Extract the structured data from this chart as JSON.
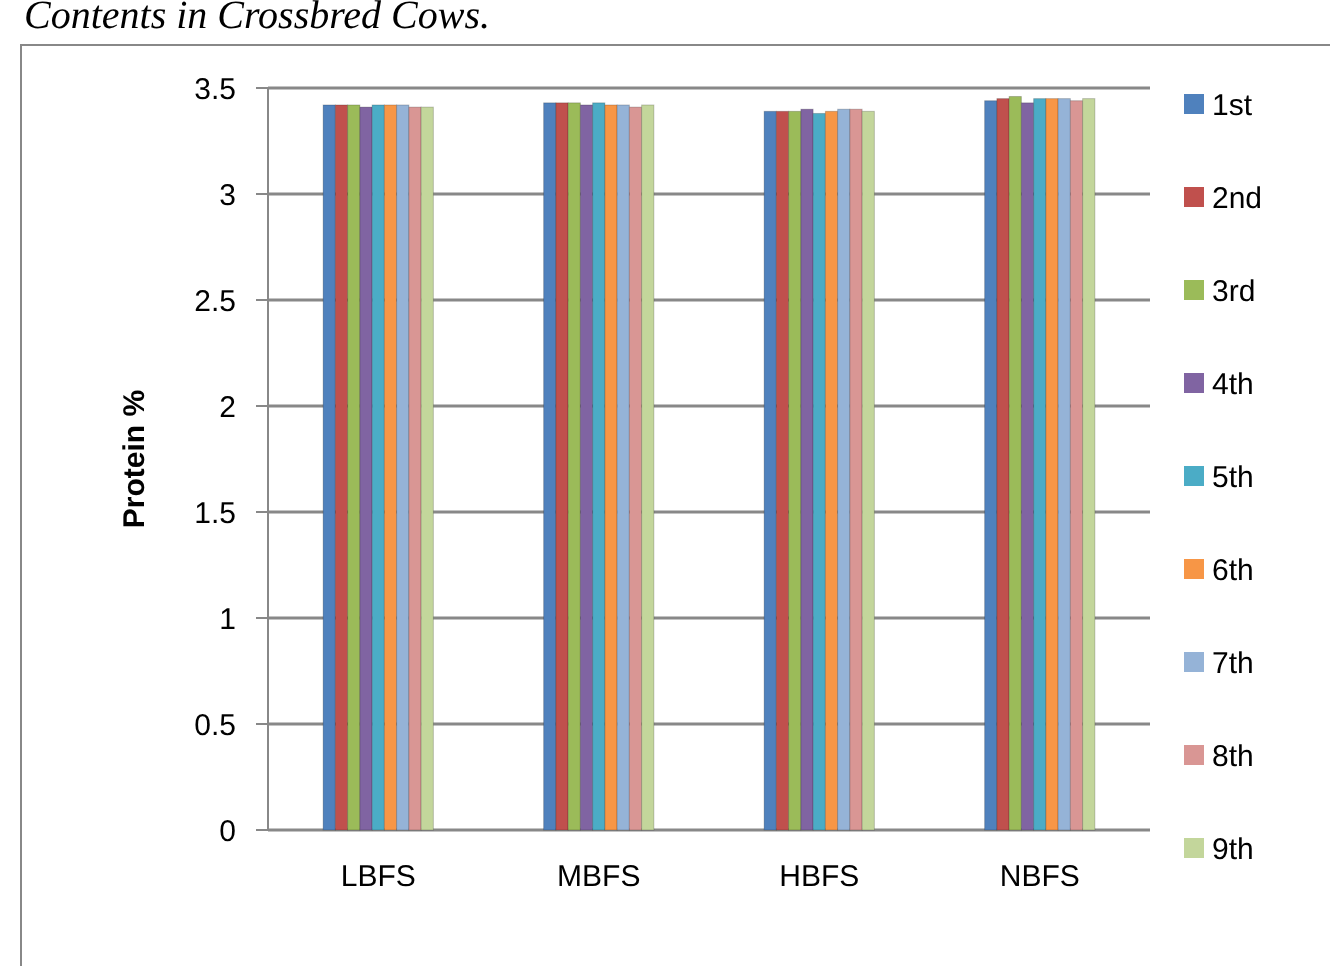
{
  "chart_data": {
    "type": "bar",
    "title": "Contents in Crossbred Cows.",
    "ylabel": "Protein %",
    "categories": [
      "LBFS",
      "MBFS",
      "HBFS",
      "NBFS"
    ],
    "series": [
      {
        "name": "1st",
        "color": "#4f81bd",
        "values": [
          3.42,
          3.43,
          3.39,
          3.44
        ]
      },
      {
        "name": "2nd",
        "color": "#c0504d",
        "values": [
          3.42,
          3.43,
          3.39,
          3.45
        ]
      },
      {
        "name": "3rd",
        "color": "#9bbb59",
        "values": [
          3.42,
          3.43,
          3.39,
          3.46
        ]
      },
      {
        "name": "4th",
        "color": "#8064a2",
        "values": [
          3.41,
          3.42,
          3.4,
          3.43
        ]
      },
      {
        "name": "5th",
        "color": "#4bacc6",
        "values": [
          3.42,
          3.43,
          3.38,
          3.45
        ]
      },
      {
        "name": "6th",
        "color": "#f79646",
        "values": [
          3.42,
          3.42,
          3.39,
          3.45
        ]
      },
      {
        "name": "7th",
        "color": "#95b3d7",
        "values": [
          3.42,
          3.42,
          3.4,
          3.45
        ]
      },
      {
        "name": "8th",
        "color": "#d99694",
        "values": [
          3.41,
          3.41,
          3.4,
          3.44
        ]
      },
      {
        "name": "9th",
        "color": "#c3d69b",
        "values": [
          3.41,
          3.42,
          3.39,
          3.45
        ]
      }
    ],
    "ylim": [
      0,
      3.5
    ],
    "yticks": [
      0,
      0.5,
      1,
      1.5,
      2,
      2.5,
      3,
      3.5
    ],
    "grid": "y",
    "legend": "right"
  }
}
